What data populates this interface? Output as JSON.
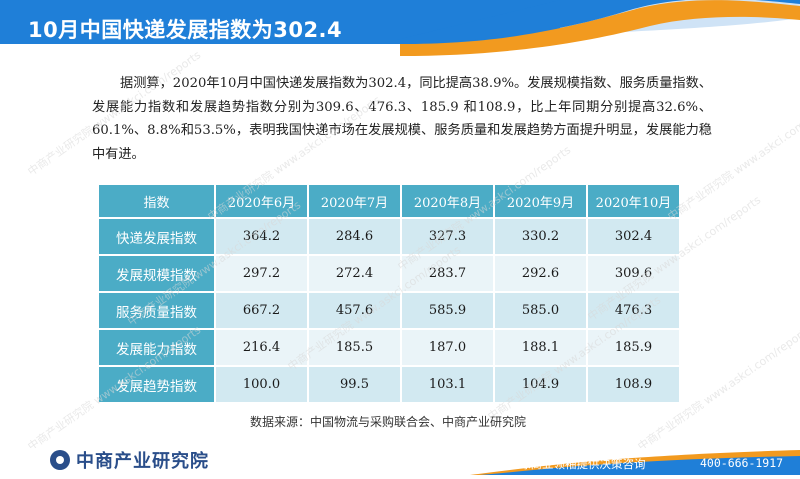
{
  "header": {
    "title": "10月中国快递发展指数为302.4",
    "colors": {
      "blue": "#1f7fd8",
      "orange": "#f29a1f",
      "light_blue": "#cfe3f6"
    }
  },
  "paragraph": "据测算，2020年10月中国快递发展指数为302.4，同比提高38.9%。发展规模指数、服务质量指数、发展能力指数和发展趋势指数分别为309.6、476.3、185.9 和108.9，比上年同期分别提高32.6%、60.1%、8.8%和53.5%，表明我国快递市场在发展规模、服务质量和发展趋势方面提升明显，发展能力稳中有进。",
  "table": {
    "header_color": "#4bacc6",
    "columns": [
      "指数",
      "2020年6月",
      "2020年7月",
      "2020年8月",
      "2020年9月",
      "2020年10月"
    ],
    "rows": [
      [
        "快递发展指数",
        "364.2",
        "284.6",
        "327.3",
        "330.2",
        "302.4"
      ],
      [
        "发展规模指数",
        "297.2",
        "272.4",
        "283.7",
        "292.6",
        "309.6"
      ],
      [
        "服务质量指数",
        "667.2",
        "457.6",
        "585.9",
        "585.0",
        "476.3"
      ],
      [
        "发展能力指数",
        "216.4",
        "185.5",
        "187.0",
        "188.1",
        "185.9"
      ],
      [
        "发展趋势指数",
        "100.0",
        "99.5",
        "103.1",
        "104.9",
        "108.9"
      ]
    ]
  },
  "source": "数据来源：中国物流与采购联合会、中商产业研究院",
  "watermark": "中商产业研究院 www.askci.com/reports",
  "footer": {
    "logo_text": "中商产业研究院",
    "slogan": "为全球商业领袖提供决策咨询",
    "phone": "400-666-1917"
  }
}
